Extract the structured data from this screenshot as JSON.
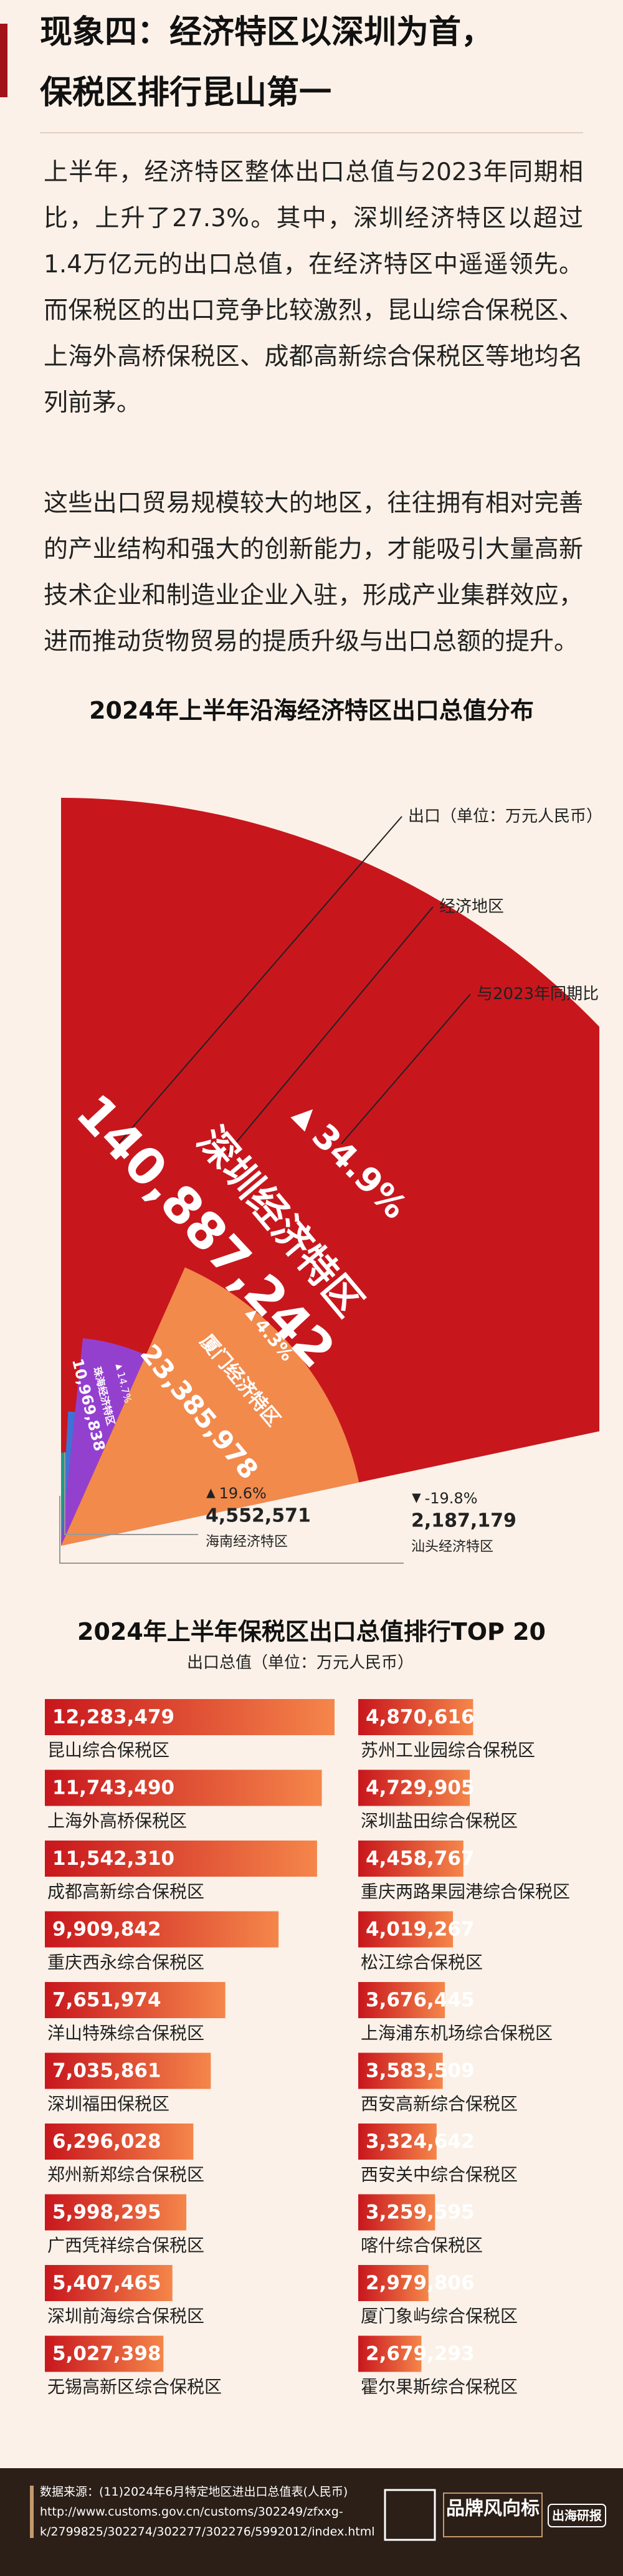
{
  "header": {
    "title_lines": [
      "现象四：经济特区以深圳为首，",
      "保税区排行昆山第一"
    ]
  },
  "paragraphs": [
    "上半年，经济特区整体出口总值与2023年同期相比，上升了27.3%。其中，深圳经济特区以超过1.4万亿元的出口总值，在经济特区中遥遥领先。而保税区的出口竞争比较激烈，昆山综合保税区、上海外高桥保税区、成都高新综合保税区等地均名列前茅。",
    "这些出口贸易规模较大的地区，往往拥有相对完善的产业结构和强大的创新能力，才能吸引大量高新技术企业和制造业企业入驻，形成产业集群效应，进而推动货物贸易的提质升级与出口总额的提升。"
  ],
  "chart_data": [
    {
      "type": "rose",
      "title": "2024年上半年沿海经济特区出口总值分布",
      "annotations": [
        "出口（单位：万元人民币）",
        "经济地区",
        "与2023年同期比"
      ],
      "categories": [
        "深圳经济特区",
        "厦门经济特区",
        "珠海经济特区",
        "海南经济特区",
        "汕头经济特区"
      ],
      "values": [
        140887242,
        23385978,
        10969838,
        4552571,
        2187179
      ],
      "value_labels": [
        "140,887,242",
        "23,385,978",
        "10,969,838",
        "4,552,571",
        "2,187,179"
      ],
      "growth": [
        34.9,
        4.3,
        14.7,
        19.6,
        -19.8
      ],
      "growth_labels": [
        "34.9%",
        "4.3%",
        "14.7%",
        "19.6%",
        "-19.8%"
      ],
      "colors": [
        "#c8161d",
        "#f28a4c",
        "#9440cf",
        "#3f72d6",
        "#1c9b86"
      ]
    },
    {
      "type": "bar",
      "title": "2024年上半年保税区出口总值排行TOP 20",
      "subtitle": "出口总值（单位：万元人民币）",
      "categories": [
        "昆山综合保税区",
        "上海外高桥保税区",
        "成都高新综合保税区",
        "重庆西永综合保税区",
        "洋山特殊综合保税区",
        "深圳福田保税区",
        "郑州新郑综合保税区",
        "广西凭祥综合保税区",
        "深圳前海综合保税区",
        "无锡高新区综合保税区",
        "苏州工业园综合保税区",
        "深圳盐田综合保税区",
        "重庆两路果园港综合保税区",
        "松江综合保税区",
        "上海浦东机场综合保税区",
        "西安高新综合保税区",
        "西安关中综合保税区",
        "喀什综合保税区",
        "厦门象屿综合保税区",
        "霍尔果斯综合保税区"
      ],
      "values": [
        12283479,
        11743490,
        11542310,
        9909842,
        7651974,
        7035861,
        6296028,
        5998295,
        5407465,
        5027398,
        4870616,
        4729905,
        4458767,
        4019267,
        3676445,
        3583509,
        3324642,
        3259595,
        2979806,
        2679293
      ],
      "value_labels": [
        "12,283,479",
        "11,743,490",
        "11,542,310",
        "9,909,842",
        "7,651,974",
        "7,035,861",
        "6,296,028",
        "5,998,295",
        "5,407,465",
        "5,027,398",
        "4,870,616",
        "4,729,905",
        "4,458,767",
        "4,019,267",
        "3,676,445",
        "3,583,509",
        "3,324,642",
        "3,259,595",
        "2,979,806",
        "2,679,293"
      ],
      "gradient": [
        "#c8161d",
        "#f5864a"
      ]
    }
  ],
  "footer": {
    "source_lines": [
      "数据来源：(11)2024年6月特定地区进出口总值表(人民币)",
      "http://www.customs.gov.cn/customs/302249/zfxxg-",
      "k/2799825/302274/302277/302276/5992012/index.html"
    ],
    "logos": [
      "品牌风向标",
      "出海研报"
    ]
  }
}
